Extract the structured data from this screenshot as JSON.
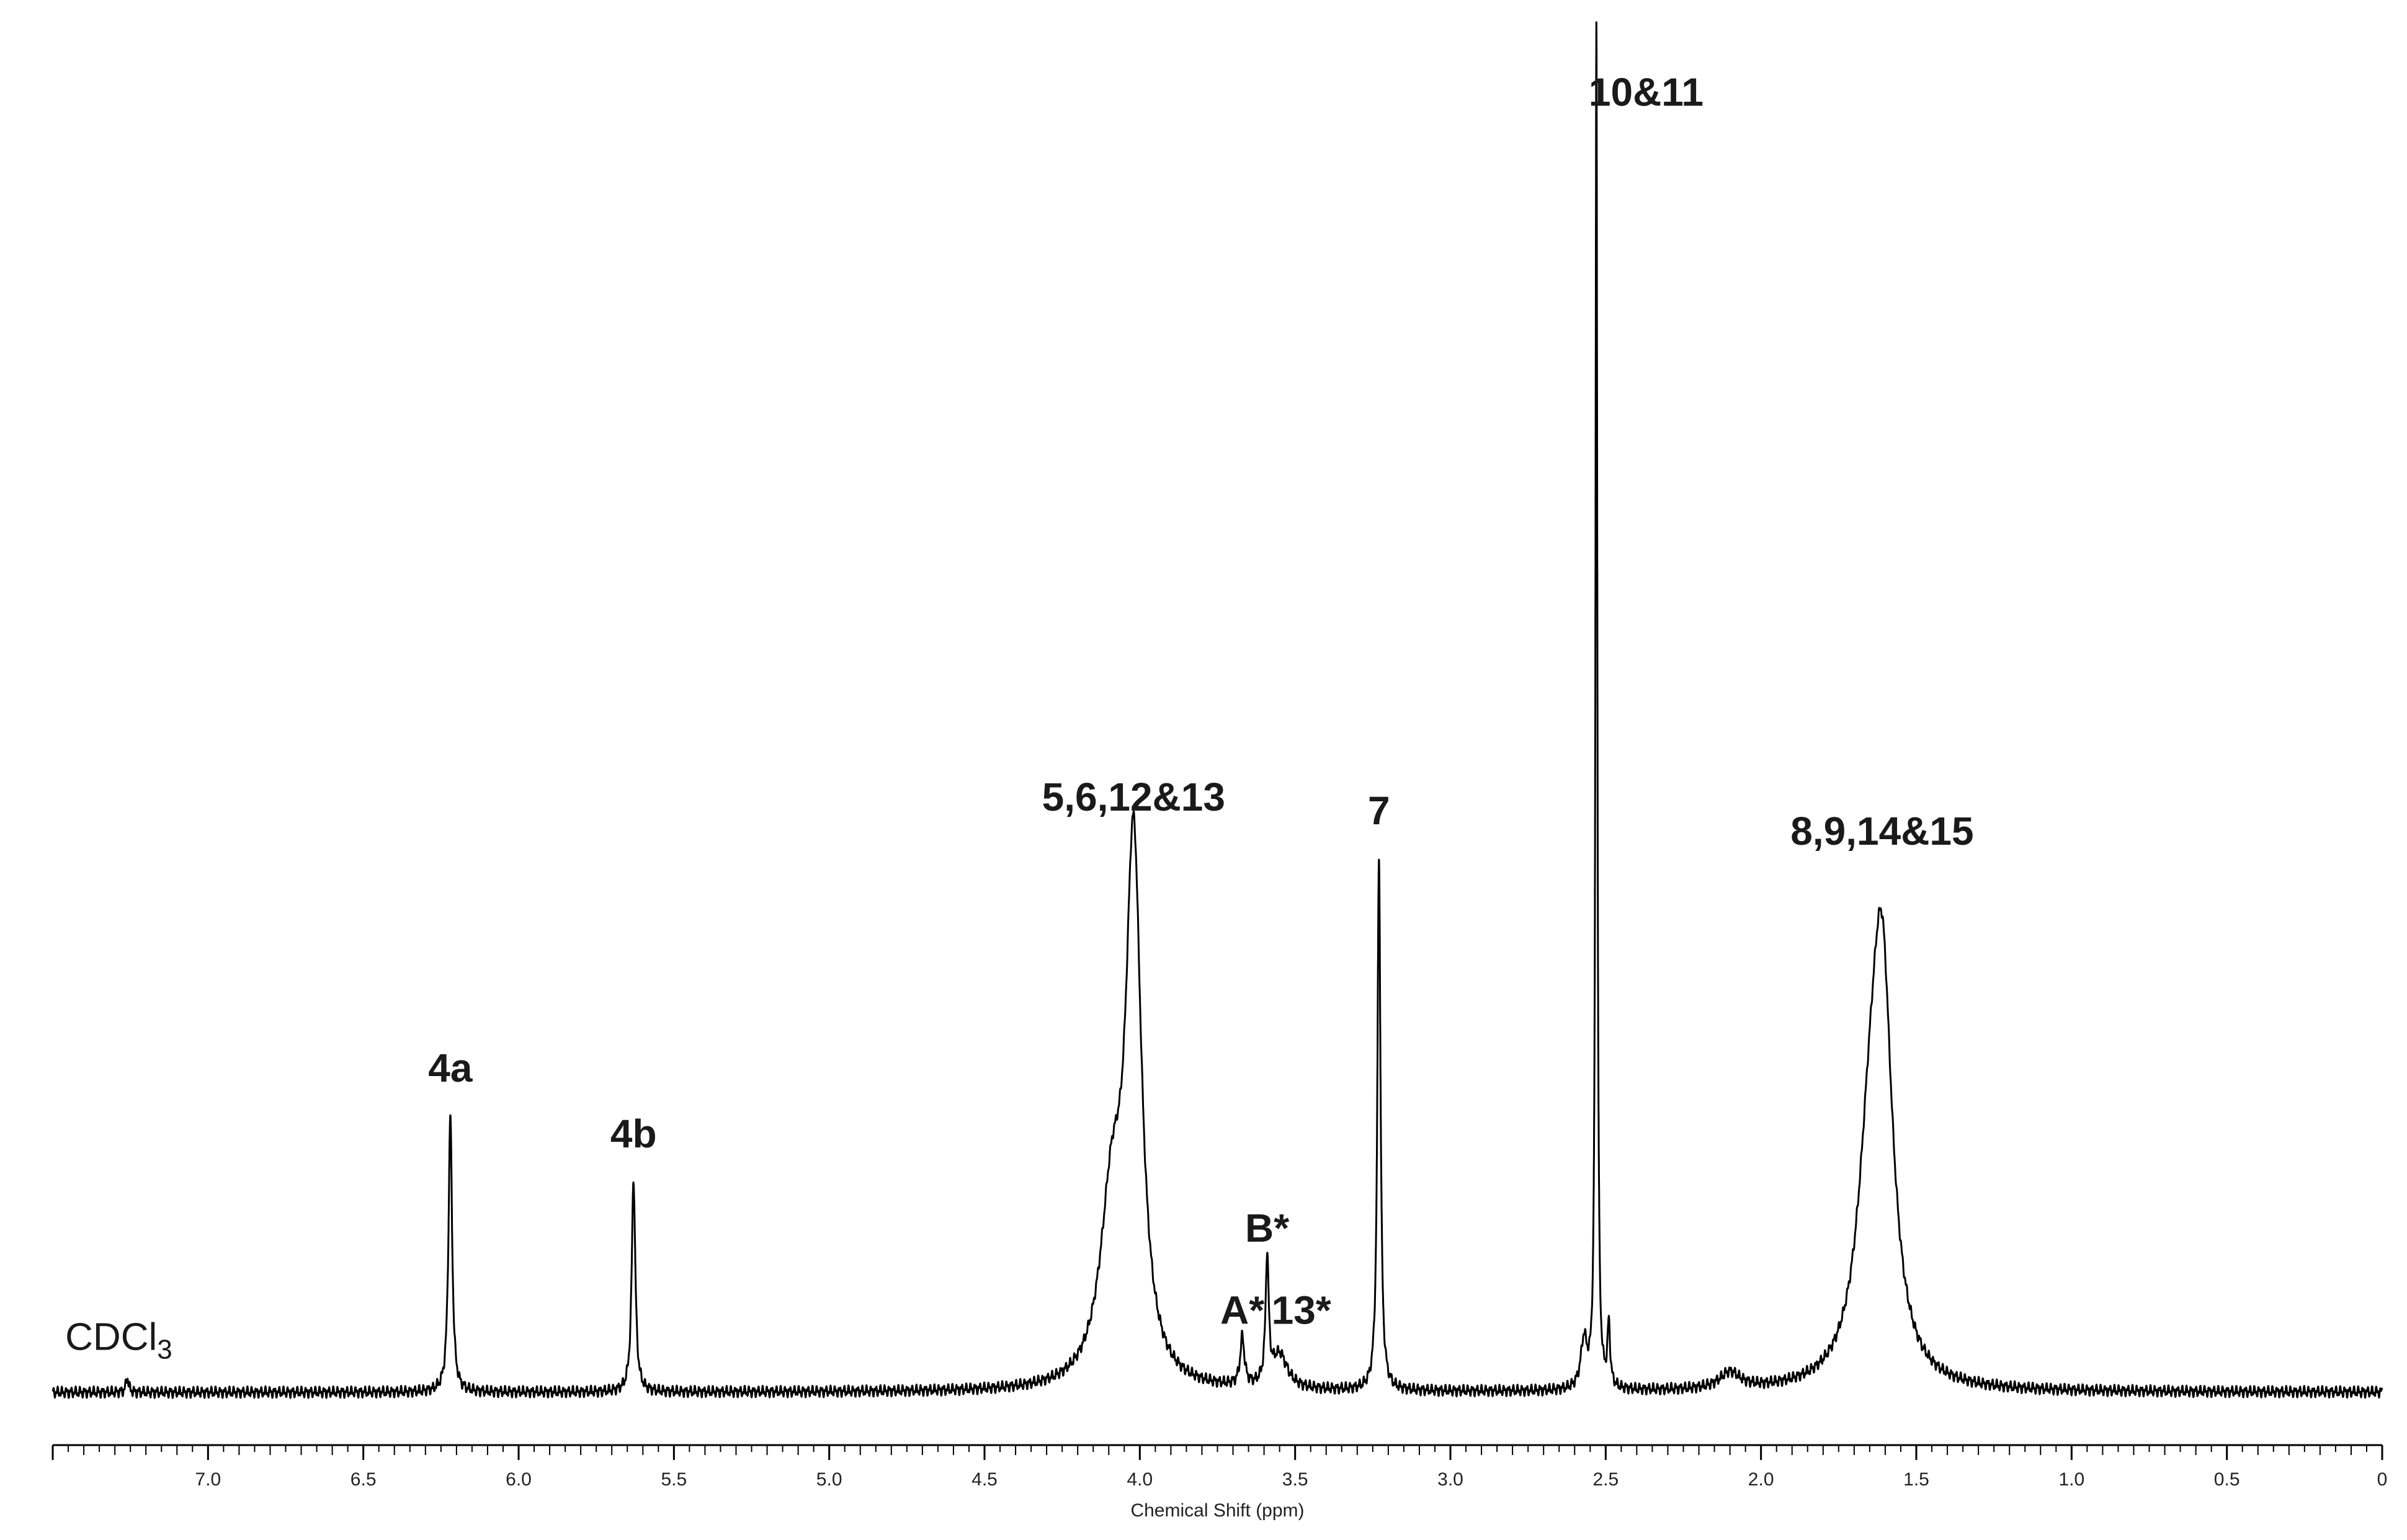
{
  "chart_data": {
    "type": "line",
    "title": "",
    "xlabel": "Chemical Shift (ppm)",
    "ylabel": "",
    "xlim": [
      7.5,
      0.0
    ],
    "x_reversed": true,
    "grid": false,
    "legend": "none",
    "line_color": "#000000",
    "xticks_major": [
      "7.0",
      "6.5",
      "6.0",
      "5.5",
      "5.0",
      "4.5",
      "4.0",
      "3.5",
      "3.0",
      "2.5",
      "2.0",
      "1.5",
      "1.0",
      "0.5",
      "0"
    ],
    "xtick_values": [
      7.0,
      6.5,
      6.0,
      5.5,
      5.0,
      4.5,
      4.0,
      3.5,
      3.0,
      2.5,
      2.0,
      1.5,
      1.0,
      0.5,
      0.0
    ],
    "minor_tick_step": 0.05,
    "series": [
      {
        "peaks": [
          {
            "shift": 7.26,
            "height": 0.011,
            "width": 0.005
          },
          {
            "shift": 6.22,
            "height": 0.202,
            "width": 0.007
          },
          {
            "shift": 5.63,
            "height": 0.156,
            "width": 0.007
          },
          {
            "shift": 4.09,
            "height": 0.125,
            "width": 0.045
          },
          {
            "shift": 4.02,
            "height": 0.385,
            "width": 0.03
          },
          {
            "shift": 3.67,
            "height": 0.035,
            "width": 0.008
          },
          {
            "shift": 3.59,
            "height": 0.092,
            "width": 0.006
          },
          {
            "shift": 3.55,
            "height": 0.025,
            "width": 0.03
          },
          {
            "shift": 3.23,
            "height": 0.39,
            "width": 0.006
          },
          {
            "shift": 2.57,
            "height": 0.035,
            "width": 0.012
          },
          {
            "shift": 2.53,
            "height": 1.0,
            "width": 0.0035
          },
          {
            "shift": 2.49,
            "height": 0.045,
            "width": 0.005
          },
          {
            "shift": 2.1,
            "height": 0.012,
            "width": 0.04
          },
          {
            "shift": 1.65,
            "height": 0.13,
            "width": 0.05
          },
          {
            "shift": 1.61,
            "height": 0.27,
            "width": 0.04
          }
        ]
      }
    ],
    "annotations": [
      {
        "id": "cdcl3",
        "text": "CDCl",
        "sub": "3",
        "shift": 7.26,
        "height": 0.031,
        "style": "solvent"
      },
      {
        "id": "4a",
        "text": "4a",
        "shift": 6.22,
        "height": 0.227
      },
      {
        "id": "4b",
        "text": "4b",
        "shift": 5.63,
        "height": 0.179
      },
      {
        "id": "5-6-12-13",
        "text": "5,6,12&13",
        "shift": 4.02,
        "height": 0.425
      },
      {
        "id": "a-star",
        "text": "A*",
        "shift": 3.67,
        "height": 0.05
      },
      {
        "id": "b-star",
        "text": "B*",
        "shift": 3.59,
        "height": 0.11
      },
      {
        "id": "13-star",
        "text": "13*",
        "shift": 3.48,
        "height": 0.05
      },
      {
        "id": "7",
        "text": "7",
        "shift": 3.23,
        "height": 0.415
      },
      {
        "id": "10-11",
        "text": "10&11",
        "shift": 2.37,
        "height": 0.94
      },
      {
        "id": "8-9-14-15",
        "text": "8,9,14&15",
        "shift": 1.61,
        "height": 0.4
      }
    ]
  }
}
